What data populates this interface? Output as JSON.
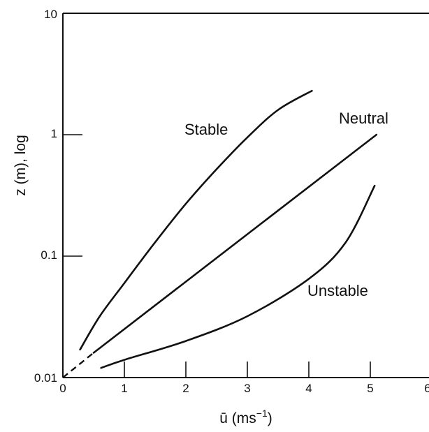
{
  "chart_data": {
    "type": "line",
    "xlabel": "ū (ms",
    "xlabel_sup": "−1",
    "xlabel_close": ")",
    "ylabel": "z (m), log",
    "xlim": [
      0,
      6
    ],
    "ylim": [
      0.01,
      10
    ],
    "y_scale": "log",
    "x_ticks": [
      "0",
      "1",
      "2",
      "3",
      "4",
      "5",
      "6"
    ],
    "y_ticks": [
      "0.01",
      "0.1",
      "1",
      "10"
    ],
    "grid": false,
    "series": [
      {
        "name": "Stable",
        "x": [
          0.28,
          0.6,
          1.0,
          1.5,
          2.0,
          2.5,
          3.0,
          3.5,
          4.05
        ],
        "y": [
          0.017,
          0.032,
          0.06,
          0.13,
          0.27,
          0.52,
          0.95,
          1.6,
          2.3
        ]
      },
      {
        "name": "Neutral",
        "x": [
          0.5,
          1.0,
          2.0,
          3.0,
          4.0,
          5.0
        ],
        "y": [
          0.016,
          0.022,
          0.046,
          0.097,
          0.21,
          0.42
        ],
        "x_extra": [
          5.1
        ],
        "y_extra": [
          1.0
        ],
        "extrapolation": {
          "x": [
            0.0,
            0.5
          ],
          "y": [
            0.01,
            0.016
          ]
        }
      },
      {
        "name": "Unstable",
        "x": [
          0.62,
          1.0,
          2.0,
          3.0,
          4.0,
          4.6,
          5.07
        ],
        "y": [
          0.012,
          0.014,
          0.02,
          0.032,
          0.065,
          0.13,
          0.38
        ]
      }
    ]
  }
}
